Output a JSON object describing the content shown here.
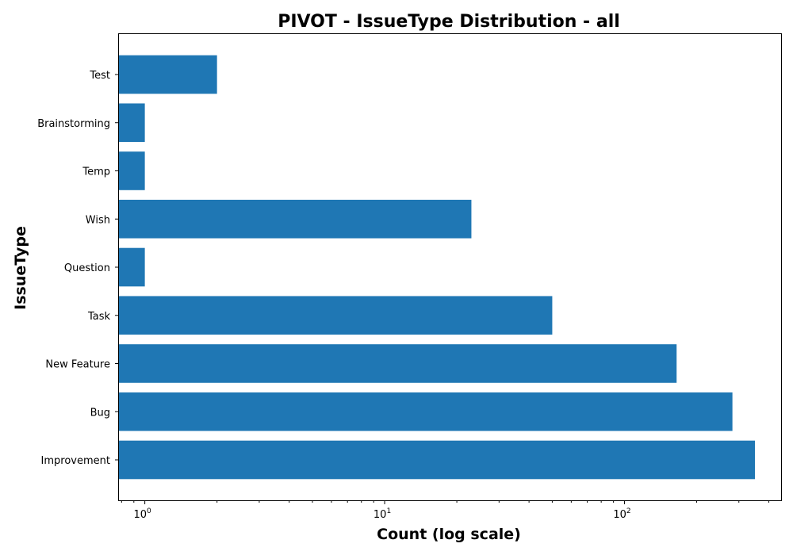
{
  "chart_data": {
    "type": "bar",
    "orientation": "horizontal",
    "title": "PIVOT - IssueType Distribution - all",
    "xlabel": "Count (log scale)",
    "ylabel": "IssueType",
    "xscale": "log",
    "xlim": [
      0.78,
      450
    ],
    "xticks": [
      {
        "value": 1,
        "base": "10",
        "exp": "0"
      },
      {
        "value": 10,
        "base": "10",
        "exp": "1"
      },
      {
        "value": 100,
        "base": "10",
        "exp": "2"
      }
    ],
    "categories": [
      "Improvement",
      "Bug",
      "New Feature",
      "Task",
      "Question",
      "Wish",
      "Temp",
      "Brainstorming",
      "Test"
    ],
    "values": [
      350,
      282,
      165,
      50,
      1,
      23,
      1,
      1,
      2
    ],
    "color": "#1f77b4",
    "grid": false,
    "legend": "none"
  }
}
